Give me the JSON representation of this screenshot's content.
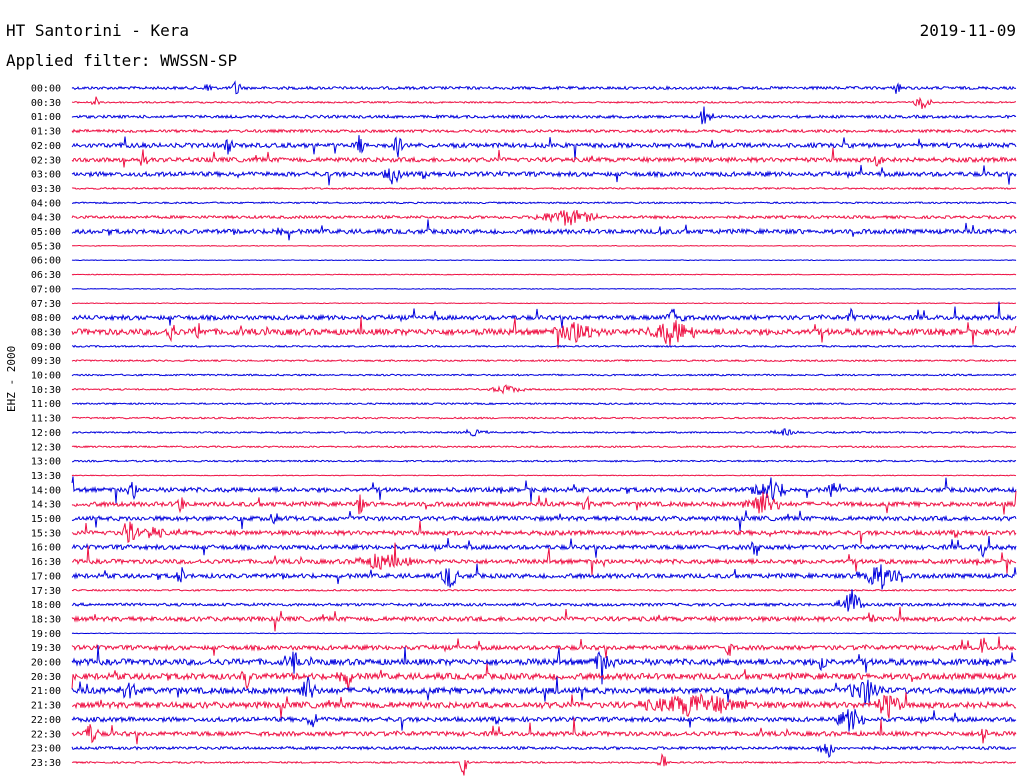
{
  "header": {
    "station": "HT Santorini - Kera",
    "date": "2019-11-09",
    "filter": "Applied filter: WWSSN-SP"
  },
  "channel": "EHZ - 2000",
  "colors": {
    "even_row": "#0000dd",
    "odd_row": "#ee1144",
    "background": "#ffffff",
    "text": "#000000"
  },
  "chart_data": {
    "type": "line",
    "title": "HT Santorini - Kera",
    "ylabel": "EHZ - 2000",
    "xlabel": "",
    "time_labels": [
      "00:00",
      "00:30",
      "01:00",
      "01:30",
      "02:00",
      "02:30",
      "03:00",
      "03:30",
      "04:00",
      "04:30",
      "05:00",
      "05:30",
      "06:00",
      "06:30",
      "07:00",
      "07:30",
      "08:00",
      "08:30",
      "09:00",
      "09:30",
      "10:00",
      "10:30",
      "11:00",
      "11:30",
      "12:00",
      "12:30",
      "13:00",
      "13:30",
      "14:00",
      "14:30",
      "15:00",
      "15:30",
      "16:00",
      "16:30",
      "17:00",
      "17:30",
      "18:00",
      "18:30",
      "19:00",
      "19:30",
      "20:00",
      "20:30",
      "21:00",
      "21:30",
      "22:00",
      "22:30",
      "23:00",
      "23:30"
    ],
    "row_activity": [
      2,
      1,
      2,
      2,
      3,
      3,
      3,
      1,
      1,
      2,
      3,
      0,
      0,
      0,
      0,
      0,
      3,
      4,
      1,
      1,
      1,
      1,
      1,
      1,
      1,
      1,
      1,
      0,
      3,
      3,
      3,
      3,
      3,
      3,
      3,
      1,
      2,
      3,
      0,
      3,
      4,
      4,
      4,
      4,
      3,
      3,
      2,
      1
    ],
    "events": [
      {
        "row": 0,
        "start": 0.14,
        "end": 0.15,
        "amp": 8
      },
      {
        "row": 0,
        "start": 0.17,
        "end": 0.18,
        "amp": 12
      },
      {
        "row": 0,
        "start": 0.87,
        "end": 0.88,
        "amp": 8
      },
      {
        "row": 1,
        "start": 0.02,
        "end": 0.03,
        "amp": 6
      },
      {
        "row": 1,
        "start": 0.89,
        "end": 0.91,
        "amp": 7
      },
      {
        "row": 2,
        "start": 0.66,
        "end": 0.68,
        "amp": 10
      },
      {
        "row": 4,
        "start": 0.16,
        "end": 0.17,
        "amp": 10
      },
      {
        "row": 4,
        "start": 0.3,
        "end": 0.31,
        "amp": 11
      },
      {
        "row": 4,
        "start": 0.34,
        "end": 0.35,
        "amp": 12
      },
      {
        "row": 5,
        "start": 0.07,
        "end": 0.08,
        "amp": 9
      },
      {
        "row": 5,
        "start": 0.85,
        "end": 0.86,
        "amp": 12
      },
      {
        "row": 6,
        "start": 0.33,
        "end": 0.35,
        "amp": 9
      },
      {
        "row": 9,
        "start": 0.49,
        "end": 0.56,
        "amp": 8
      },
      {
        "row": 10,
        "start": 0.21,
        "end": 0.23,
        "amp": 4
      },
      {
        "row": 10,
        "start": 0.62,
        "end": 0.63,
        "amp": 6
      },
      {
        "row": 16,
        "start": 0.63,
        "end": 0.65,
        "amp": 12
      },
      {
        "row": 16,
        "start": 0.82,
        "end": 0.83,
        "amp": 7
      },
      {
        "row": 17,
        "start": 0.1,
        "end": 0.11,
        "amp": 14
      },
      {
        "row": 17,
        "start": 0.13,
        "end": 0.14,
        "amp": 10
      },
      {
        "row": 17,
        "start": 0.51,
        "end": 0.56,
        "amp": 10
      },
      {
        "row": 17,
        "start": 0.61,
        "end": 0.66,
        "amp": 12
      },
      {
        "row": 21,
        "start": 0.44,
        "end": 0.48,
        "amp": 4
      },
      {
        "row": 24,
        "start": 0.41,
        "end": 0.44,
        "amp": 3
      },
      {
        "row": 24,
        "start": 0.74,
        "end": 0.77,
        "amp": 3
      },
      {
        "row": 28,
        "start": 0.06,
        "end": 0.07,
        "amp": 10
      },
      {
        "row": 28,
        "start": 0.72,
        "end": 0.76,
        "amp": 11
      },
      {
        "row": 28,
        "start": 0.8,
        "end": 0.81,
        "amp": 9
      },
      {
        "row": 29,
        "start": 0.11,
        "end": 0.12,
        "amp": 9
      },
      {
        "row": 29,
        "start": 0.3,
        "end": 0.31,
        "amp": 11
      },
      {
        "row": 29,
        "start": 0.54,
        "end": 0.55,
        "amp": 12
      },
      {
        "row": 29,
        "start": 0.71,
        "end": 0.75,
        "amp": 13
      },
      {
        "row": 30,
        "start": 0.21,
        "end": 0.22,
        "amp": 9
      },
      {
        "row": 31,
        "start": 0.05,
        "end": 0.07,
        "amp": 12
      },
      {
        "row": 31,
        "start": 0.07,
        "end": 0.1,
        "amp": 6
      },
      {
        "row": 32,
        "start": 0.72,
        "end": 0.73,
        "amp": 11
      },
      {
        "row": 32,
        "start": 0.96,
        "end": 0.97,
        "amp": 9
      },
      {
        "row": 33,
        "start": 0.3,
        "end": 0.36,
        "amp": 8
      },
      {
        "row": 34,
        "start": 0.11,
        "end": 0.12,
        "amp": 10
      },
      {
        "row": 34,
        "start": 0.39,
        "end": 0.41,
        "amp": 12
      },
      {
        "row": 34,
        "start": 0.83,
        "end": 0.88,
        "amp": 13
      },
      {
        "row": 36,
        "start": 0.81,
        "end": 0.84,
        "amp": 16
      },
      {
        "row": 37,
        "start": 0.84,
        "end": 0.85,
        "amp": 9
      },
      {
        "row": 39,
        "start": 0.69,
        "end": 0.7,
        "amp": 10
      },
      {
        "row": 39,
        "start": 0.96,
        "end": 0.97,
        "amp": 12
      },
      {
        "row": 40,
        "start": 0.23,
        "end": 0.24,
        "amp": 12
      },
      {
        "row": 40,
        "start": 0.55,
        "end": 0.57,
        "amp": 11
      },
      {
        "row": 40,
        "start": 0.79,
        "end": 0.8,
        "amp": 10
      },
      {
        "row": 41,
        "start": 0.18,
        "end": 0.19,
        "amp": 12
      },
      {
        "row": 41,
        "start": 0.28,
        "end": 0.3,
        "amp": 11
      },
      {
        "row": 42,
        "start": 0.05,
        "end": 0.07,
        "amp": 9
      },
      {
        "row": 42,
        "start": 0.24,
        "end": 0.26,
        "amp": 12
      },
      {
        "row": 42,
        "start": 0.82,
        "end": 0.86,
        "amp": 12
      },
      {
        "row": 43,
        "start": 0.6,
        "end": 0.72,
        "amp": 10
      },
      {
        "row": 43,
        "start": 0.85,
        "end": 0.88,
        "amp": 12
      },
      {
        "row": 44,
        "start": 0.25,
        "end": 0.26,
        "amp": 14
      },
      {
        "row": 44,
        "start": 0.81,
        "end": 0.84,
        "amp": 12
      },
      {
        "row": 45,
        "start": 0.01,
        "end": 0.03,
        "amp": 10
      },
      {
        "row": 45,
        "start": 0.96,
        "end": 0.97,
        "amp": 12
      },
      {
        "row": 46,
        "start": 0.79,
        "end": 0.81,
        "amp": 10
      },
      {
        "row": 47,
        "start": 0.41,
        "end": 0.42,
        "amp": 16
      },
      {
        "row": 47,
        "start": 0.62,
        "end": 0.63,
        "amp": 14
      }
    ]
  }
}
